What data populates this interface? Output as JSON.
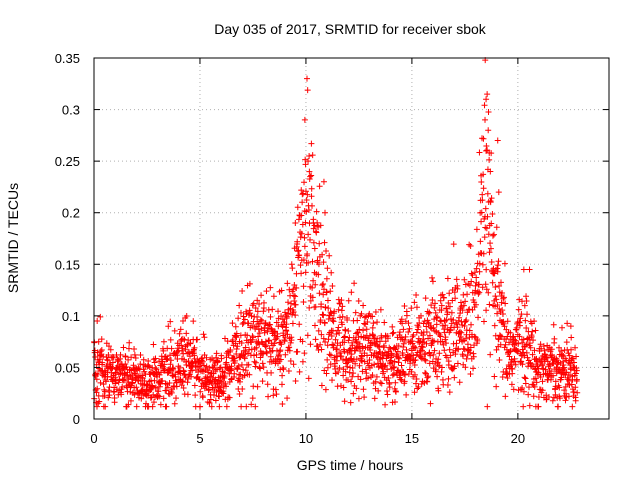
{
  "chart_data": {
    "type": "scatter",
    "title": "Day 035 of 2017, SRMTID for receiver sbok",
    "xlabel": "GPS time / hours",
    "ylabel": "SRMTID / TECUs",
    "xlim": [
      0,
      24.3
    ],
    "ylim": [
      0,
      0.35
    ],
    "xticks": [
      0,
      5,
      10,
      15,
      20
    ],
    "xtick_labels": [
      "0",
      "5",
      "10",
      "15",
      "20"
    ],
    "yticks": [
      0,
      0.05,
      0.1,
      0.15,
      0.2,
      0.25,
      0.3,
      0.35
    ],
    "ytick_labels": [
      "0",
      "0.05",
      "0.1",
      "0.15",
      "0.2",
      "0.25",
      "0.3",
      "0.35"
    ],
    "grid": true,
    "marker": "+",
    "color": "#ff0000",
    "series": [
      {
        "name": "SRMTID",
        "x_range": [
          0,
          22.8
        ],
        "profile": {
          "x": [
            0,
            0.3,
            1,
            2,
            2.5,
            3,
            4,
            4.5,
            5,
            5.5,
            6,
            6.5,
            7,
            7.5,
            8,
            9,
            9.3,
            9.6,
            9.9,
            10.1,
            10.4,
            10.7,
            11,
            11.5,
            12,
            13,
            14,
            15,
            16,
            17,
            17.5,
            18,
            18.3,
            18.5,
            18.7,
            19,
            19.3,
            19.6,
            20,
            20.3,
            20.6,
            21,
            22,
            22.8
          ],
          "y": [
            0.05,
            0.055,
            0.042,
            0.04,
            0.035,
            0.04,
            0.05,
            0.06,
            0.045,
            0.04,
            0.035,
            0.05,
            0.065,
            0.08,
            0.075,
            0.07,
            0.095,
            0.13,
            0.16,
            0.2,
            0.15,
            0.12,
            0.09,
            0.075,
            0.07,
            0.07,
            0.055,
            0.065,
            0.075,
            0.085,
            0.09,
            0.1,
            0.17,
            0.2,
            0.16,
            0.1,
            0.08,
            0.06,
            0.07,
            0.08,
            0.06,
            0.05,
            0.05,
            0.045
          ]
        },
        "spread": 0.33,
        "n_points": 2200,
        "extremes": [
          {
            "x": 10.05,
            "y": 0.33
          },
          {
            "x": 9.95,
            "y": 0.29
          },
          {
            "x": 10.15,
            "y": 0.255
          },
          {
            "x": 10.1,
            "y": 0.25
          },
          {
            "x": 10.2,
            "y": 0.235
          },
          {
            "x": 10.85,
            "y": 0.23
          },
          {
            "x": 10.9,
            "y": 0.2
          },
          {
            "x": 9.5,
            "y": 0.19
          },
          {
            "x": 18.55,
            "y": 0.315
          },
          {
            "x": 18.5,
            "y": 0.31
          },
          {
            "x": 18.45,
            "y": 0.29
          },
          {
            "x": 18.6,
            "y": 0.28
          },
          {
            "x": 19.05,
            "y": 0.27
          },
          {
            "x": 18.5,
            "y": 0.26
          },
          {
            "x": 18.65,
            "y": 0.258
          },
          {
            "x": 18.7,
            "y": 0.24
          },
          {
            "x": 19.1,
            "y": 0.22
          },
          {
            "x": 0.15,
            "y": 0.095
          },
          {
            "x": 4.2,
            "y": 0.095
          },
          {
            "x": 6.85,
            "y": 0.11
          },
          {
            "x": 7.7,
            "y": 0.115
          },
          {
            "x": 20.55,
            "y": 0.145
          },
          {
            "x": 22.5,
            "y": 0.09
          },
          {
            "x": 20.85,
            "y": 0.012
          },
          {
            "x": 20.2,
            "y": 0.03
          }
        ]
      }
    ]
  }
}
